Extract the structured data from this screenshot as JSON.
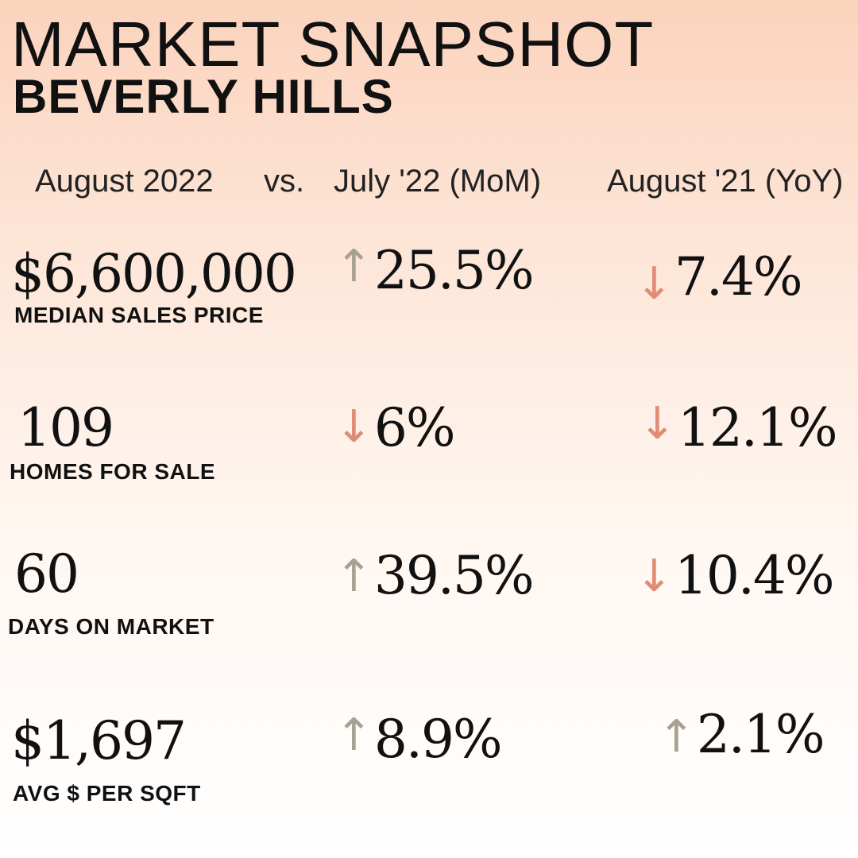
{
  "title": "MARKET SNAPSHOT",
  "subtitle": "BEVERLY HILLS",
  "headers": {
    "current": "August 2022",
    "vs": "vs.",
    "mom": "July '22 (MoM)",
    "yoy": "August '21 (YoY)"
  },
  "metrics": [
    {
      "value": "$6,600,000",
      "label": "MEDIAN SALES PRICE",
      "mom": "25.5%",
      "mom_dir": "up",
      "yoy": "7.4%",
      "yoy_dir": "down"
    },
    {
      "value": "109",
      "label": "HOMES FOR SALE",
      "mom": "6%",
      "mom_dir": "down",
      "yoy": "12.1%",
      "yoy_dir": "down"
    },
    {
      "value": "60",
      "label": "DAYS ON MARKET",
      "mom": "39.5%",
      "mom_dir": "up",
      "yoy": "10.4%",
      "yoy_dir": "down"
    },
    {
      "value": "$1,697",
      "label": "AVG $ PER SQFT",
      "mom": "8.9%",
      "mom_dir": "up",
      "yoy": "2.1%",
      "yoy_dir": "up"
    }
  ],
  "icons": {
    "up": "up-arrow-icon",
    "down": "down-arrow-icon"
  },
  "colors": {
    "up": "#a7a192",
    "down": "#e08b74"
  }
}
